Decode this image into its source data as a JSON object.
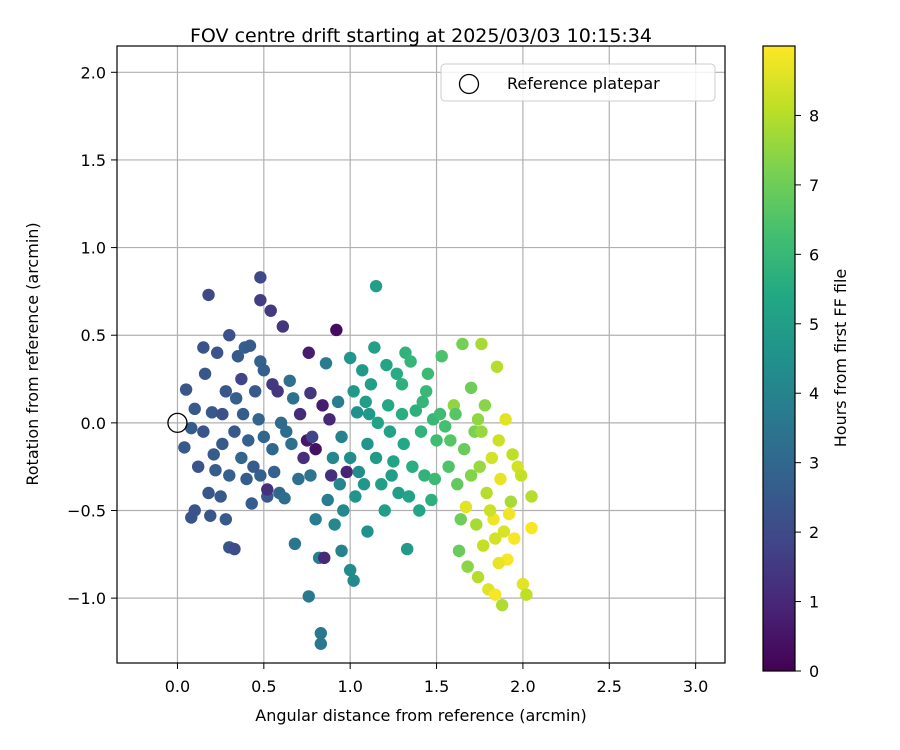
{
  "chart_data": {
    "type": "scatter",
    "title": "FOV centre drift starting at 2025/03/03 10:15:34",
    "xlabel": "Angular distance from reference (arcmin)",
    "ylabel": "Rotation from reference (arcmin)",
    "xlim": [
      -0.35,
      3.17
    ],
    "ylim": [
      -1.37,
      2.15
    ],
    "x_ticks": [
      "0.0",
      "0.5",
      "1.0",
      "1.5",
      "2.0",
      "2.5",
      "3.0"
    ],
    "y_ticks": [
      "2.0",
      "1.5",
      "1.0",
      "0.5",
      "0.0",
      "−0.5",
      "−1.0"
    ],
    "grid": true,
    "legend": {
      "position": "top-right",
      "entries": [
        {
          "label": "Reference platepar",
          "marker": "open-circle"
        }
      ]
    },
    "reference_point": {
      "x": 0.0,
      "y": 0.0
    },
    "colorbar": {
      "label": "Hours from first FF file",
      "colormap": "viridis",
      "range": [
        0,
        9
      ],
      "ticks": [
        "0",
        "1",
        "2",
        "3",
        "4",
        "5",
        "6",
        "7",
        "8"
      ]
    },
    "series": [
      {
        "marker": "filled-circle",
        "points": [
          {
            "x": 0.05,
            "y": 0.19,
            "c": 2.4
          },
          {
            "x": 0.1,
            "y": 0.08,
            "c": 2.5
          },
          {
            "x": 0.15,
            "y": -0.05,
            "c": 2.3
          },
          {
            "x": 0.08,
            "y": -0.03,
            "c": 2.6
          },
          {
            "x": 0.04,
            "y": -0.14,
            "c": 2.5
          },
          {
            "x": 0.12,
            "y": -0.25,
            "c": 2.3
          },
          {
            "x": 0.16,
            "y": 0.28,
            "c": 2.4
          },
          {
            "x": 0.2,
            "y": 0.06,
            "c": 2.5
          },
          {
            "x": 0.21,
            "y": -0.18,
            "c": 2.6
          },
          {
            "x": 0.26,
            "y": 0.05,
            "c": 2.2
          },
          {
            "x": 0.23,
            "y": 0.4,
            "c": 2.3
          },
          {
            "x": 0.3,
            "y": 0.5,
            "c": 2.2
          },
          {
            "x": 0.28,
            "y": 0.18,
            "c": 2.4
          },
          {
            "x": 0.33,
            "y": -0.05,
            "c": 2.5
          },
          {
            "x": 0.3,
            "y": -0.3,
            "c": 2.7
          },
          {
            "x": 0.25,
            "y": -0.42,
            "c": 2.5
          },
          {
            "x": 0.18,
            "y": -0.4,
            "c": 2.4
          },
          {
            "x": 0.1,
            "y": -0.5,
            "c": 2.3
          },
          {
            "x": 0.19,
            "y": -0.53,
            "c": 2.4
          },
          {
            "x": 0.28,
            "y": -0.55,
            "c": 2.5
          },
          {
            "x": 0.3,
            "y": -0.71,
            "c": 2.4
          },
          {
            "x": 0.33,
            "y": -0.72,
            "c": 2.1
          },
          {
            "x": 0.18,
            "y": 0.73,
            "c": 2.0
          },
          {
            "x": 0.15,
            "y": 0.43,
            "c": 2.3
          },
          {
            "x": 0.35,
            "y": 0.38,
            "c": 2.5
          },
          {
            "x": 0.39,
            "y": 0.43,
            "c": 2.7
          },
          {
            "x": 0.42,
            "y": 0.44,
            "c": 2.6
          },
          {
            "x": 0.37,
            "y": 0.25,
            "c": 1.8
          },
          {
            "x": 0.38,
            "y": 0.05,
            "c": 2.6
          },
          {
            "x": 0.41,
            "y": -0.1,
            "c": 2.7
          },
          {
            "x": 0.37,
            "y": -0.2,
            "c": 2.9
          },
          {
            "x": 0.4,
            "y": -0.32,
            "c": 2.6
          },
          {
            "x": 0.43,
            "y": -0.46,
            "c": 2.6
          },
          {
            "x": 0.48,
            "y": 0.35,
            "c": 2.8
          },
          {
            "x": 0.5,
            "y": 0.3,
            "c": 2.7
          },
          {
            "x": 0.45,
            "y": 0.18,
            "c": 2.5
          },
          {
            "x": 0.47,
            "y": 0.02,
            "c": 2.9
          },
          {
            "x": 0.5,
            "y": -0.08,
            "c": 3.0
          },
          {
            "x": 0.48,
            "y": -0.3,
            "c": 2.8
          },
          {
            "x": 0.52,
            "y": -0.42,
            "c": 2.5
          },
          {
            "x": 0.55,
            "y": 0.22,
            "c": 1.5
          },
          {
            "x": 0.58,
            "y": 0.18,
            "c": 1.4
          },
          {
            "x": 0.55,
            "y": -0.15,
            "c": 3.0
          },
          {
            "x": 0.56,
            "y": -0.28,
            "c": 2.8
          },
          {
            "x": 0.59,
            "y": -0.4,
            "c": 3.0
          },
          {
            "x": 0.52,
            "y": -0.38,
            "c": 1.2
          },
          {
            "x": 0.48,
            "y": 0.83,
            "c": 2.0
          },
          {
            "x": 0.48,
            "y": 0.7,
            "c": 1.6
          },
          {
            "x": 0.54,
            "y": 0.64,
            "c": 1.5
          },
          {
            "x": 0.61,
            "y": 0.55,
            "c": 1.4
          },
          {
            "x": 0.65,
            "y": 0.24,
            "c": 3.3
          },
          {
            "x": 0.67,
            "y": 0.14,
            "c": 3.4
          },
          {
            "x": 0.63,
            "y": -0.05,
            "c": 3.2
          },
          {
            "x": 0.66,
            "y": -0.12,
            "c": 3.3
          },
          {
            "x": 0.62,
            "y": -0.43,
            "c": 3.2
          },
          {
            "x": 0.68,
            "y": -0.69,
            "c": 3.5
          },
          {
            "x": 0.73,
            "y": -0.2,
            "c": 1.2
          },
          {
            "x": 0.75,
            "y": -0.1,
            "c": 0.6
          },
          {
            "x": 0.7,
            "y": -0.32,
            "c": 3.3
          },
          {
            "x": 0.76,
            "y": 0.4,
            "c": 0.7
          },
          {
            "x": 0.77,
            "y": 0.17,
            "c": 1.4
          },
          {
            "x": 0.78,
            "y": -0.08,
            "c": 1.8
          },
          {
            "x": 0.8,
            "y": -0.15,
            "c": 0.4
          },
          {
            "x": 0.77,
            "y": -0.3,
            "c": 3.5
          },
          {
            "x": 0.8,
            "y": -0.55,
            "c": 3.8
          },
          {
            "x": 0.82,
            "y": -0.77,
            "c": 3.9
          },
          {
            "x": 0.76,
            "y": -0.99,
            "c": 3.6
          },
          {
            "x": 0.83,
            "y": -1.2,
            "c": 3.6
          },
          {
            "x": 0.83,
            "y": -1.26,
            "c": 3.6
          },
          {
            "x": 0.85,
            "y": -0.77,
            "c": 1.1
          },
          {
            "x": 0.84,
            "y": 0.1,
            "c": 0.7
          },
          {
            "x": 0.86,
            "y": 0.34,
            "c": 3.7
          },
          {
            "x": 0.88,
            "y": 0.02,
            "c": 1.0
          },
          {
            "x": 0.89,
            "y": -0.3,
            "c": 1.2
          },
          {
            "x": 0.87,
            "y": -0.44,
            "c": 3.8
          },
          {
            "x": 0.91,
            "y": -0.58,
            "c": 4.2
          },
          {
            "x": 0.92,
            "y": 0.53,
            "c": 0.3
          },
          {
            "x": 0.93,
            "y": 0.12,
            "c": 3.8
          },
          {
            "x": 0.95,
            "y": -0.08,
            "c": 4.0
          },
          {
            "x": 0.94,
            "y": -0.35,
            "c": 4.1
          },
          {
            "x": 0.96,
            "y": -0.5,
            "c": 4.2
          },
          {
            "x": 0.95,
            "y": -0.73,
            "c": 4.0
          },
          {
            "x": 0.98,
            "y": -0.28,
            "c": 0.9
          },
          {
            "x": 1.0,
            "y": 0.37,
            "c": 4.7
          },
          {
            "x": 1.02,
            "y": 0.18,
            "c": 4.8
          },
          {
            "x": 1.04,
            "y": 0.06,
            "c": 4.5
          },
          {
            "x": 1.0,
            "y": -0.2,
            "c": 4.4
          },
          {
            "x": 1.03,
            "y": -0.42,
            "c": 4.6
          },
          {
            "x": 1.0,
            "y": -0.84,
            "c": 4.3
          },
          {
            "x": 1.02,
            "y": -0.9,
            "c": 4.2
          },
          {
            "x": 1.07,
            "y": 0.3,
            "c": 4.9
          },
          {
            "x": 1.09,
            "y": 0.12,
            "c": 5.0
          },
          {
            "x": 1.1,
            "y": -0.12,
            "c": 4.6
          },
          {
            "x": 1.08,
            "y": -0.35,
            "c": 4.7
          },
          {
            "x": 1.1,
            "y": -0.62,
            "c": 4.5
          },
          {
            "x": 1.12,
            "y": 0.22,
            "c": 5.1
          },
          {
            "x": 1.14,
            "y": 0.43,
            "c": 5.1
          },
          {
            "x": 1.15,
            "y": 0.78,
            "c": 5.0
          },
          {
            "x": 1.16,
            "y": 0.0,
            "c": 5.2
          },
          {
            "x": 1.15,
            "y": -0.2,
            "c": 4.9
          },
          {
            "x": 1.18,
            "y": -0.35,
            "c": 5.1
          },
          {
            "x": 1.2,
            "y": -0.5,
            "c": 5.0
          },
          {
            "x": 1.22,
            "y": 0.1,
            "c": 5.4
          },
          {
            "x": 1.23,
            "y": -0.05,
            "c": 5.2
          },
          {
            "x": 1.25,
            "y": -0.22,
            "c": 5.3
          },
          {
            "x": 1.27,
            "y": 0.28,
            "c": 5.5
          },
          {
            "x": 1.28,
            "y": -0.4,
            "c": 5.0
          },
          {
            "x": 1.3,
            "y": 0.05,
            "c": 5.6
          },
          {
            "x": 1.31,
            "y": -0.12,
            "c": 5.4
          },
          {
            "x": 1.32,
            "y": 0.4,
            "c": 5.8
          },
          {
            "x": 1.33,
            "y": -0.72,
            "c": 4.9
          },
          {
            "x": 1.35,
            "y": 0.35,
            "c": 5.9
          },
          {
            "x": 1.36,
            "y": -0.25,
            "c": 5.6
          },
          {
            "x": 1.38,
            "y": 0.07,
            "c": 5.7
          },
          {
            "x": 1.4,
            "y": -0.5,
            "c": 5.3
          },
          {
            "x": 1.42,
            "y": 0.12,
            "c": 5.9
          },
          {
            "x": 1.43,
            "y": -0.3,
            "c": 5.8
          },
          {
            "x": 1.45,
            "y": 0.28,
            "c": 6.1
          },
          {
            "x": 1.47,
            "y": -0.44,
            "c": 5.7
          },
          {
            "x": 1.48,
            "y": 0.02,
            "c": 6.0
          },
          {
            "x": 1.5,
            "y": -0.1,
            "c": 6.2
          },
          {
            "x": 1.53,
            "y": 0.38,
            "c": 6.4
          },
          {
            "x": 1.55,
            "y": -0.02,
            "c": 6.3
          },
          {
            "x": 1.57,
            "y": -0.25,
            "c": 6.5
          },
          {
            "x": 1.6,
            "y": 0.1,
            "c": 7.5
          },
          {
            "x": 1.61,
            "y": 0.05,
            "c": 6.6
          },
          {
            "x": 1.62,
            "y": -0.35,
            "c": 6.8
          },
          {
            "x": 1.63,
            "y": -0.73,
            "c": 6.9
          },
          {
            "x": 1.65,
            "y": 0.45,
            "c": 7.1
          },
          {
            "x": 1.66,
            "y": -0.15,
            "c": 6.9
          },
          {
            "x": 1.67,
            "y": -0.48,
            "c": 8.6
          },
          {
            "x": 1.68,
            "y": -0.82,
            "c": 7.4
          },
          {
            "x": 1.7,
            "y": 0.2,
            "c": 7.0
          },
          {
            "x": 1.72,
            "y": -0.05,
            "c": 7.2
          },
          {
            "x": 1.73,
            "y": -0.58,
            "c": 7.8
          },
          {
            "x": 1.74,
            "y": 0.02,
            "c": 7.5
          },
          {
            "x": 1.75,
            "y": -0.25,
            "c": 7.6
          },
          {
            "x": 1.76,
            "y": 0.45,
            "c": 7.8
          },
          {
            "x": 1.77,
            "y": -0.7,
            "c": 8.2
          },
          {
            "x": 1.78,
            "y": 0.1,
            "c": 7.4
          },
          {
            "x": 1.79,
            "y": -0.4,
            "c": 8.0
          },
          {
            "x": 1.8,
            "y": -0.95,
            "c": 8.6
          },
          {
            "x": 1.82,
            "y": -0.2,
            "c": 8.4
          },
          {
            "x": 1.83,
            "y": -0.55,
            "c": 8.8
          },
          {
            "x": 1.84,
            "y": -0.98,
            "c": 8.9
          },
          {
            "x": 1.85,
            "y": 0.32,
            "c": 8.0
          },
          {
            "x": 1.86,
            "y": -0.1,
            "c": 8.3
          },
          {
            "x": 1.87,
            "y": -0.32,
            "c": 8.7
          },
          {
            "x": 1.88,
            "y": -1.04,
            "c": 7.9
          },
          {
            "x": 1.89,
            "y": -0.62,
            "c": 8.5
          },
          {
            "x": 1.9,
            "y": 0.02,
            "c": 8.6
          },
          {
            "x": 1.91,
            "y": -0.78,
            "c": 8.9
          },
          {
            "x": 1.93,
            "y": -0.45,
            "c": 7.8
          },
          {
            "x": 1.94,
            "y": -0.18,
            "c": 8.1
          },
          {
            "x": 1.95,
            "y": -0.66,
            "c": 8.9
          },
          {
            "x": 1.97,
            "y": -0.25,
            "c": 8.4
          },
          {
            "x": 2.0,
            "y": -0.92,
            "c": 8.6
          },
          {
            "x": 2.02,
            "y": -0.98,
            "c": 8.1
          },
          {
            "x": 2.05,
            "y": -0.6,
            "c": 8.9
          },
          {
            "x": 2.05,
            "y": -0.42,
            "c": 8.0
          },
          {
            "x": 0.08,
            "y": -0.54,
            "c": 2.3
          },
          {
            "x": 0.22,
            "y": -0.27,
            "c": 2.6
          },
          {
            "x": 0.26,
            "y": -0.12,
            "c": 2.5
          },
          {
            "x": 0.34,
            "y": 0.14,
            "c": 2.7
          },
          {
            "x": 0.44,
            "y": -0.25,
            "c": 2.6
          },
          {
            "x": 0.6,
            "y": 0.0,
            "c": 3.1
          },
          {
            "x": 0.71,
            "y": 0.05,
            "c": 1.1
          },
          {
            "x": 0.9,
            "y": -0.2,
            "c": 4.1
          },
          {
            "x": 1.05,
            "y": -0.28,
            "c": 4.4
          },
          {
            "x": 1.11,
            "y": 0.05,
            "c": 4.8
          },
          {
            "x": 1.21,
            "y": 0.33,
            "c": 5.3
          },
          {
            "x": 1.24,
            "y": -0.3,
            "c": 5.0
          },
          {
            "x": 1.3,
            "y": 0.22,
            "c": 5.7
          },
          {
            "x": 1.34,
            "y": -0.42,
            "c": 5.2
          },
          {
            "x": 1.41,
            "y": -0.05,
            "c": 5.8
          },
          {
            "x": 1.44,
            "y": 0.18,
            "c": 6.0
          },
          {
            "x": 1.49,
            "y": -0.32,
            "c": 6.1
          },
          {
            "x": 1.52,
            "y": 0.05,
            "c": 6.2
          },
          {
            "x": 1.58,
            "y": -0.1,
            "c": 6.6
          },
          {
            "x": 1.64,
            "y": -0.55,
            "c": 7.0
          },
          {
            "x": 1.7,
            "y": -0.3,
            "c": 7.3
          },
          {
            "x": 1.76,
            "y": -0.05,
            "c": 7.6
          },
          {
            "x": 1.81,
            "y": -0.5,
            "c": 8.3
          },
          {
            "x": 1.86,
            "y": -0.8,
            "c": 8.7
          },
          {
            "x": 1.92,
            "y": -0.52,
            "c": 8.8
          },
          {
            "x": 1.99,
            "y": -0.3,
            "c": 8.2
          },
          {
            "x": 1.74,
            "y": -0.88,
            "c": 8.0
          },
          {
            "x": 1.84,
            "y": -0.66,
            "c": 8.4
          }
        ]
      }
    ]
  }
}
